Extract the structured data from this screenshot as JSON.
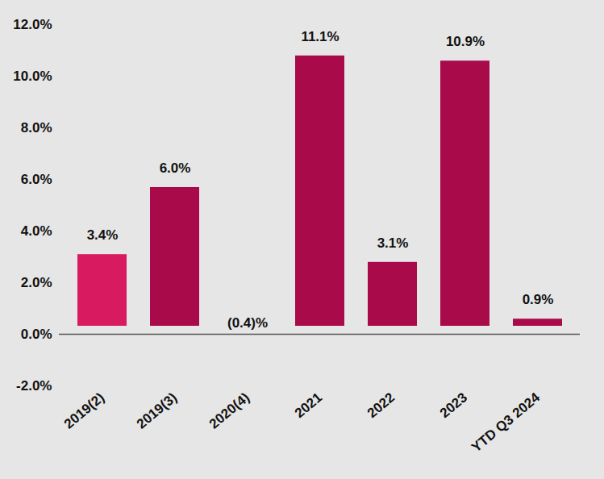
{
  "chart_data": {
    "type": "bar",
    "categories": [
      "2019(2)",
      "2019(3)",
      "2020(4)",
      "2021",
      "2022",
      "2023",
      "YTD Q3 2024"
    ],
    "values": [
      3.4,
      6.0,
      -0.4,
      11.1,
      3.1,
      10.9,
      0.9
    ],
    "value_labels": [
      "3.4%",
      "6.0%",
      "(0.4)%",
      "11.1%",
      "3.1%",
      "10.9%",
      "0.9%"
    ],
    "colors": [
      "#d81b60",
      "#a90a4a",
      "#a90a4a",
      "#a90a4a",
      "#a90a4a",
      "#a90a4a",
      "#a90a4a"
    ],
    "ylim": [
      -2,
      12
    ],
    "yticks": [
      {
        "value": -2,
        "label": "-2.0%"
      },
      {
        "value": 0,
        "label": "0.0%"
      },
      {
        "value": 2,
        "label": "2.0%"
      },
      {
        "value": 4,
        "label": "4.0%"
      },
      {
        "value": 6,
        "label": "6.0%"
      },
      {
        "value": 8,
        "label": "8.0%"
      },
      {
        "value": 10,
        "label": "10.0%"
      },
      {
        "value": 12,
        "label": "12.0%"
      }
    ],
    "grid": false,
    "data_labels": true
  }
}
